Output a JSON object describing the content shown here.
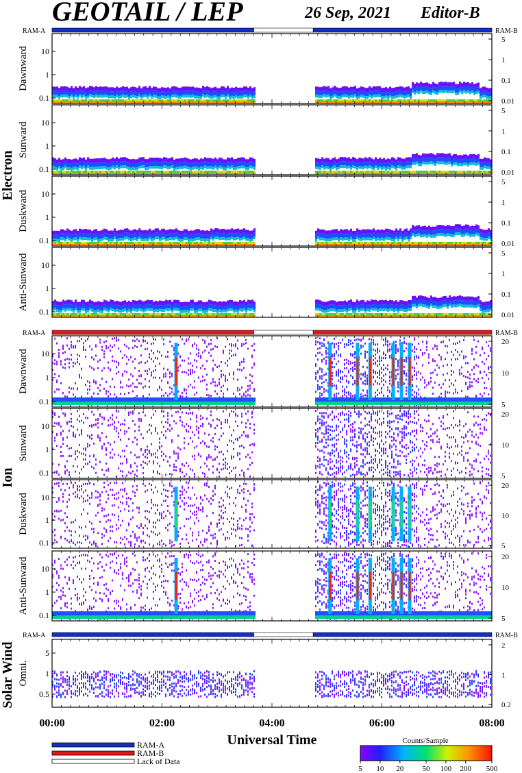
{
  "header": {
    "title": "GEOTAIL / LEP",
    "date": "26 Sep, 2021",
    "editor": "Editor-B"
  },
  "chart_data": {
    "type": "heatmap",
    "time_axis": {
      "xlabel": "Universal Time",
      "ticks": [
        "00:00",
        "02:00",
        "04:00",
        "06:00",
        "08:00"
      ],
      "range_hours": [
        0,
        8
      ],
      "data_gap_hours": [
        3.67,
        4.75
      ]
    },
    "groups": [
      {
        "name": "Electron",
        "ram_left": "RAM-A",
        "ram_right": "RAM-B",
        "mode_bar": [
          {
            "from": 0,
            "to": 3.67,
            "mode": "RAM-A"
          },
          {
            "from": 3.67,
            "to": 4.75,
            "mode": "Lack of Data"
          },
          {
            "from": 4.75,
            "to": 8,
            "mode": "RAM-A"
          }
        ],
        "panels": [
          {
            "label": "Dawnward",
            "left_ticks": [
              "10",
              "1",
              "0.1"
            ],
            "right_ticks": [
              "5",
              "1",
              "0.1",
              "0.01"
            ]
          },
          {
            "label": "Sunward",
            "left_ticks": [
              "10",
              "1",
              "0.1"
            ],
            "right_ticks": [
              "5",
              "1",
              "0.1",
              "0.01"
            ]
          },
          {
            "label": "Duskward",
            "left_ticks": [
              "10",
              "1",
              "0.1"
            ],
            "right_ticks": [
              "5",
              "1",
              "0.1",
              "0.01"
            ]
          },
          {
            "label": "Anti-Sunward",
            "left_ticks": [
              "10",
              "1",
              "0.1"
            ],
            "right_ticks": [
              "5",
              "1",
              "0.1",
              "0.01"
            ]
          }
        ]
      },
      {
        "name": "Ion",
        "ram_left": "RAM-A",
        "ram_right": "RAM-B",
        "mode_bar": [
          {
            "from": 0,
            "to": 3.67,
            "mode": "RAM-B"
          },
          {
            "from": 3.67,
            "to": 4.75,
            "mode": "Lack of Data"
          },
          {
            "from": 4.75,
            "to": 8,
            "mode": "RAM-B"
          }
        ],
        "panels": [
          {
            "label": "Dawnward",
            "left_ticks": [
              "10",
              "1",
              "0.1"
            ],
            "right_ticks": [
              "20",
              "10",
              "5"
            ]
          },
          {
            "label": "Sunward",
            "left_ticks": [
              "10",
              "1",
              "0.1"
            ],
            "right_ticks": [
              "20",
              "10",
              "5"
            ]
          },
          {
            "label": "Duskward",
            "left_ticks": [
              "10",
              "1",
              "0.1"
            ],
            "right_ticks": [
              "20",
              "10",
              "5"
            ]
          },
          {
            "label": "Anti-Sunward",
            "left_ticks": [
              "10",
              "1",
              "0.1"
            ],
            "right_ticks": [
              "20",
              "10",
              "5"
            ]
          }
        ]
      },
      {
        "name": "Solar Wind",
        "ram_left": "RAM-A",
        "ram_right": "RAM-B",
        "mode_bar": [
          {
            "from": 0,
            "to": 3.67,
            "mode": "RAM-A"
          },
          {
            "from": 3.67,
            "to": 4.75,
            "mode": "Lack of Data"
          },
          {
            "from": 4.75,
            "to": 8,
            "mode": "RAM-A"
          }
        ],
        "panels": [
          {
            "label": "Omni.",
            "left_ticks": [
              "5",
              "1",
              "0.5"
            ],
            "right_ticks": [
              "2",
              "1",
              "0.2"
            ]
          }
        ]
      }
    ],
    "legend": {
      "entries": [
        {
          "label": "RAM-A",
          "color": "#1030c8"
        },
        {
          "label": "RAM-B",
          "color": "#e01818"
        },
        {
          "label": "Lack of Data",
          "color": "#ffffff"
        }
      ]
    },
    "colorbar": {
      "title": "Counts/Sample",
      "ticks": [
        "5",
        "10",
        "20",
        "50",
        "100",
        "200",
        "500"
      ],
      "scale": "log",
      "range": [
        5,
        500
      ]
    }
  }
}
